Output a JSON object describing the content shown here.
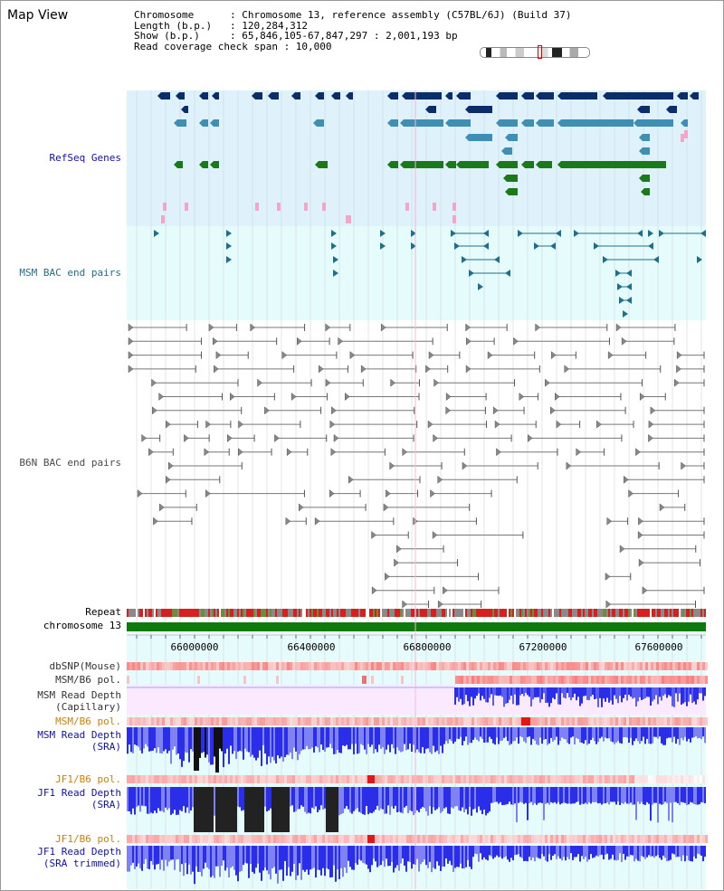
{
  "view": {
    "title": "Map View",
    "info_lines": [
      "Chromosome      : Chromosome 13, reference assembly (C57BL/6J) (Build 37)",
      "Length (b.p.)   : 120,284,312",
      "Show (b.p.)     : 65,846,105-67,847,297 : 2,001,193 bp",
      "Read coverage check span : 10,000"
    ]
  },
  "tracks": {
    "refseq": "RefSeq Genes",
    "msm_bac": "MSM BAC end pairs",
    "b6n_bac": "B6N BAC end pairs",
    "repeat": "Repeat",
    "chromosome": "chromosome 13",
    "dbsnp": "dbSNP(Mouse)",
    "msm_b6_pol_1": "MSM/B6 pol.",
    "msm_depth_cap_1": "MSM Read Depth",
    "msm_depth_cap_2": "(Capillary)",
    "msm_b6_pol_2": "MSM/B6 pol.",
    "msm_depth_sra_1": "MSM Read Depth",
    "msm_depth_sra_2": "(SRA)",
    "jf1_b6_pol_1": "JF1/B6 pol.",
    "jf1_depth_sra_1": "JF1 Read Depth",
    "jf1_depth_sra_2": "(SRA)",
    "jf1_b6_pol_2": "JF1/B6 pol.",
    "jf1_depth_trim_1": "JF1 Read Depth",
    "jf1_depth_trim_2": "(SRA trimmed)"
  },
  "axis": {
    "ticks": [
      "66000000",
      "66400000",
      "66800000",
      "67200000",
      "67600000"
    ]
  },
  "colors": {
    "refseq_bg": "#dff2fb",
    "msm_bg": "#e6fbfb",
    "navy": "#0b2e6b",
    "steel": "#3f8fb4",
    "green": "#1a7a1a",
    "pink": "#f4a6c6",
    "bac": "#1f6f8b",
    "repeat_red": "#d62020",
    "chrom_green": "#0e7a0e",
    "depth_blue": "#2b2ee8",
    "light_blue": "#7f82f2",
    "label_blue": "#1010b0",
    "label_orange": "#d08000"
  }
}
